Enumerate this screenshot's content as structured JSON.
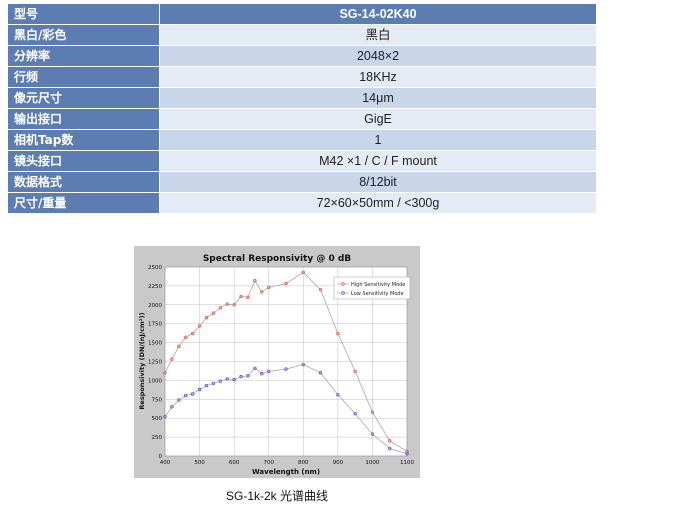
{
  "spec_table": {
    "rows": [
      {
        "key": "型号",
        "value": "SG-14-02K40"
      },
      {
        "key": "黑白/彩色",
        "value": "黑白"
      },
      {
        "key": "分辨率",
        "value": "2048×2"
      },
      {
        "key": "行频",
        "value": "18KHz"
      },
      {
        "key": "像元尺寸",
        "value": "14μm"
      },
      {
        "key": "输出接口",
        "value": "GigE"
      },
      {
        "key": "相机Tap数",
        "value": "1"
      },
      {
        "key": "镜头接口",
        "value": "M42 ×1 / C / F mount"
      },
      {
        "key": "数据格式",
        "value": "8/12bit"
      },
      {
        "key": "尺寸/重量",
        "value": "72×60×50mm / <300g"
      }
    ]
  },
  "caption": "SG-1k-2k 光谱曲线",
  "colors": {
    "header_bg": "#5b7db1",
    "row_light": "#e5ebf5",
    "row_dark": "#c9d6ea",
    "chart_bg": "#c9c9c9"
  },
  "chart_data": {
    "type": "line",
    "title": "Spectral Responsivity @ 0 dB",
    "xlabel": "Wavelength (nm)",
    "ylabel": "Responsivity (DN/(nJ/cm²))",
    "xlim": [
      400,
      1100
    ],
    "ylim": [
      0,
      2500
    ],
    "xticks": [
      400,
      500,
      600,
      700,
      800,
      900,
      1000,
      1100
    ],
    "yticks": [
      0,
      250,
      500,
      750,
      1000,
      1250,
      1500,
      1750,
      2000,
      2250,
      2500
    ],
    "grid": true,
    "legend_position": "top-right",
    "series": [
      {
        "name": "High Sensitivity Mode",
        "color": "#e0604c",
        "x": [
          400,
          420,
          440,
          460,
          480,
          500,
          520,
          540,
          560,
          580,
          600,
          620,
          640,
          660,
          680,
          700,
          750,
          800,
          850,
          900,
          950,
          1000,
          1050,
          1100
        ],
        "y": [
          1100,
          1280,
          1450,
          1570,
          1620,
          1720,
          1830,
          1890,
          1960,
          2010,
          2000,
          2110,
          2100,
          2320,
          2170,
          2230,
          2280,
          2430,
          2200,
          1620,
          1120,
          580,
          200,
          60
        ]
      },
      {
        "name": "Low Sensitivity Mode",
        "color": "#4c5ce0",
        "x": [
          400,
          420,
          440,
          460,
          480,
          500,
          520,
          540,
          560,
          580,
          600,
          620,
          640,
          660,
          680,
          700,
          750,
          800,
          850,
          900,
          950,
          1000,
          1050,
          1100
        ],
        "y": [
          520,
          650,
          740,
          800,
          820,
          880,
          930,
          960,
          990,
          1020,
          1010,
          1050,
          1060,
          1160,
          1090,
          1120,
          1150,
          1210,
          1100,
          810,
          560,
          290,
          100,
          30
        ]
      }
    ]
  }
}
